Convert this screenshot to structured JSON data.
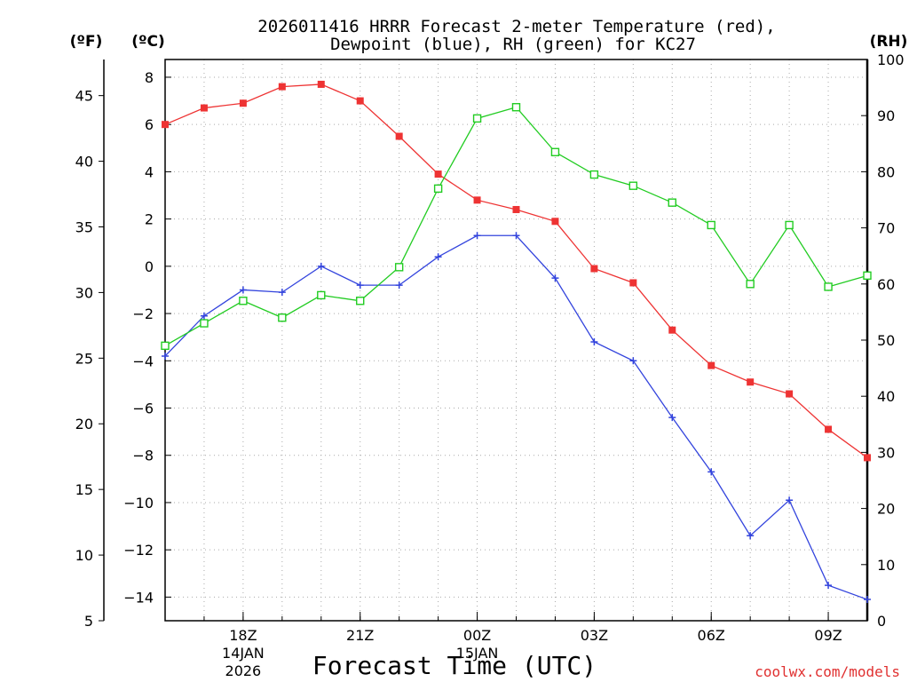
{
  "chart_data": {
    "type": "line",
    "title_line1": "2026011416 HRRR Forecast 2-meter Temperature (red),",
    "title_line2": "Dewpoint (blue), RH (green) for KC27",
    "units": {
      "fahrenheit": "(ºF)",
      "celsius": "(ºC)",
      "rh": "(RH)"
    },
    "xlabel": "Forecast Time (UTC)",
    "credit": "coolwx.com/models",
    "x_hours": [
      16,
      17,
      18,
      19,
      20,
      21,
      22,
      23,
      24,
      25,
      26,
      27,
      28,
      29,
      30,
      31,
      32,
      33,
      34
    ],
    "x_ticks": [
      {
        "hour": 18,
        "label": "18Z",
        "date": "14JAN",
        "year": "2026"
      },
      {
        "hour": 21,
        "label": "21Z"
      },
      {
        "hour": 24,
        "label": "00Z",
        "date": "15JAN"
      },
      {
        "hour": 27,
        "label": "03Z"
      },
      {
        "hour": 30,
        "label": "06Z"
      },
      {
        "hour": 33,
        "label": "09Z"
      }
    ],
    "xlim": [
      16,
      34
    ],
    "celsius_axis": {
      "range": [
        -15,
        8.75
      ],
      "ticks": [
        8,
        6,
        4,
        2,
        0,
        -2,
        -4,
        -6,
        -8,
        -10,
        -12,
        -14
      ],
      "tick_labels": [
        "8",
        "6",
        "4",
        "2",
        "0",
        "−2",
        "−4",
        "−6",
        "−8",
        "−10",
        "−12",
        "−14"
      ]
    },
    "fahrenheit_axis": {
      "range": [
        5,
        47.75
      ],
      "ticks": [
        45,
        40,
        35,
        30,
        25,
        20,
        15,
        10,
        5
      ],
      "tick_labels": [
        "45",
        "40",
        "35",
        "30",
        "25",
        "20",
        "15",
        "10",
        "5"
      ]
    },
    "rh_axis": {
      "range": [
        0,
        100
      ],
      "ticks": [
        100,
        90,
        80,
        70,
        60,
        50,
        40,
        30,
        20,
        10,
        0
      ],
      "tick_labels": [
        "100",
        "90",
        "80",
        "70",
        "60",
        "50",
        "40",
        "30",
        "20",
        "10",
        "0"
      ]
    },
    "series": [
      {
        "name": "2-meter Temperature (°C)",
        "color": "#ee3333",
        "marker": "filled-square",
        "axis": "celsius",
        "values": [
          6.0,
          6.7,
          6.9,
          7.6,
          7.7,
          7.0,
          5.5,
          3.9,
          2.8,
          2.4,
          1.9,
          -0.1,
          -0.7,
          -2.7,
          -4.2,
          -4.9,
          -5.4,
          -6.9,
          -8.1
        ]
      },
      {
        "name": "Dewpoint (°C)",
        "color": "#3344dd",
        "marker": "plus",
        "axis": "celsius",
        "values": [
          -3.8,
          -2.1,
          -1.0,
          -1.1,
          0.0,
          -0.8,
          -0.8,
          0.4,
          1.3,
          1.3,
          -0.5,
          -3.2,
          -4.0,
          -6.4,
          -8.7,
          -11.4,
          -9.9,
          -13.5,
          -14.1
        ]
      },
      {
        "name": "RH (%)",
        "color": "#22cc22",
        "marker": "open-square",
        "axis": "rh",
        "values": [
          49,
          53,
          57,
          54,
          58,
          57,
          63,
          77,
          89.5,
          91.5,
          83.5,
          79.5,
          77.5,
          74.5,
          70.5,
          60,
          70.5,
          59.5,
          61.5
        ]
      }
    ]
  }
}
